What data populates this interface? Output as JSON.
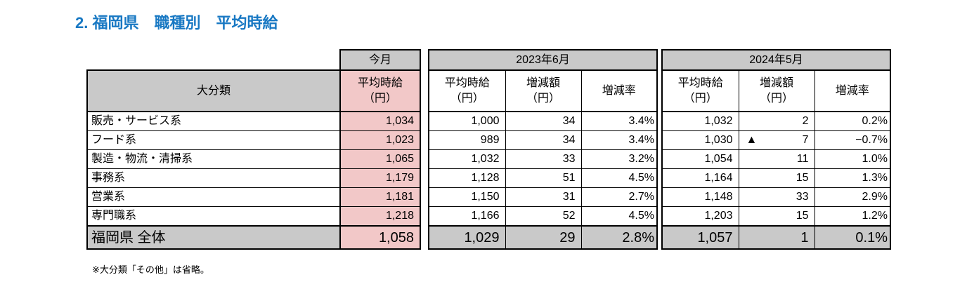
{
  "title": "2. 福岡県　職種別　平均時給",
  "colors": {
    "accent_blue": "#1878c3",
    "header_gray": "#c9c9c9",
    "highlight_pink": "#f2c8c8",
    "border_black": "#000000"
  },
  "table": {
    "category_header": "大分類",
    "current": {
      "group_label": "今月",
      "sub_label": "平均時給\n（円）"
    },
    "periods": [
      {
        "label": "2023年6月",
        "subs": {
          "wage": "平均時給\n（円）",
          "change": "増減額\n（円）",
          "rate": "増減率"
        }
      },
      {
        "label": "2024年5月",
        "subs": {
          "wage": "平均時給\n（円）",
          "change": "増減額\n（円）",
          "rate": "増減率"
        }
      }
    ],
    "rows": [
      {
        "category": "販売・サービス系",
        "current": "1,034",
        "y2023": {
          "wage": "1,000",
          "change": "34",
          "rate": "3.4%"
        },
        "y2024": {
          "marker": "",
          "wage": "1,032",
          "change": "2",
          "rate": "0.2%"
        }
      },
      {
        "category": "フード系",
        "current": "1,023",
        "y2023": {
          "wage": "989",
          "change": "34",
          "rate": "3.4%"
        },
        "y2024": {
          "marker": "▲",
          "wage": "1,030",
          "change": "7",
          "rate": "−0.7%"
        }
      },
      {
        "category": "製造・物流・清掃系",
        "current": "1,065",
        "y2023": {
          "wage": "1,032",
          "change": "33",
          "rate": "3.2%"
        },
        "y2024": {
          "marker": "",
          "wage": "1,054",
          "change": "11",
          "rate": "1.0%"
        }
      },
      {
        "category": "事務系",
        "current": "1,179",
        "y2023": {
          "wage": "1,128",
          "change": "51",
          "rate": "4.5%"
        },
        "y2024": {
          "marker": "",
          "wage": "1,164",
          "change": "15",
          "rate": "1.3%"
        }
      },
      {
        "category": "営業系",
        "current": "1,181",
        "y2023": {
          "wage": "1,150",
          "change": "31",
          "rate": "2.7%"
        },
        "y2024": {
          "marker": "",
          "wage": "1,148",
          "change": "33",
          "rate": "2.9%"
        }
      },
      {
        "category": "専門職系",
        "current": "1,218",
        "y2023": {
          "wage": "1,166",
          "change": "52",
          "rate": "4.5%"
        },
        "y2024": {
          "marker": "",
          "wage": "1,203",
          "change": "15",
          "rate": "1.2%"
        }
      }
    ],
    "total": {
      "category": "福岡県 全体",
      "current": "1,058",
      "y2023": {
        "wage": "1,029",
        "change": "29",
        "rate": "2.8%"
      },
      "y2024": {
        "marker": "",
        "wage": "1,057",
        "change": "1",
        "rate": "0.1%"
      }
    },
    "footnote": "※大分類「その他」は省略。"
  }
}
